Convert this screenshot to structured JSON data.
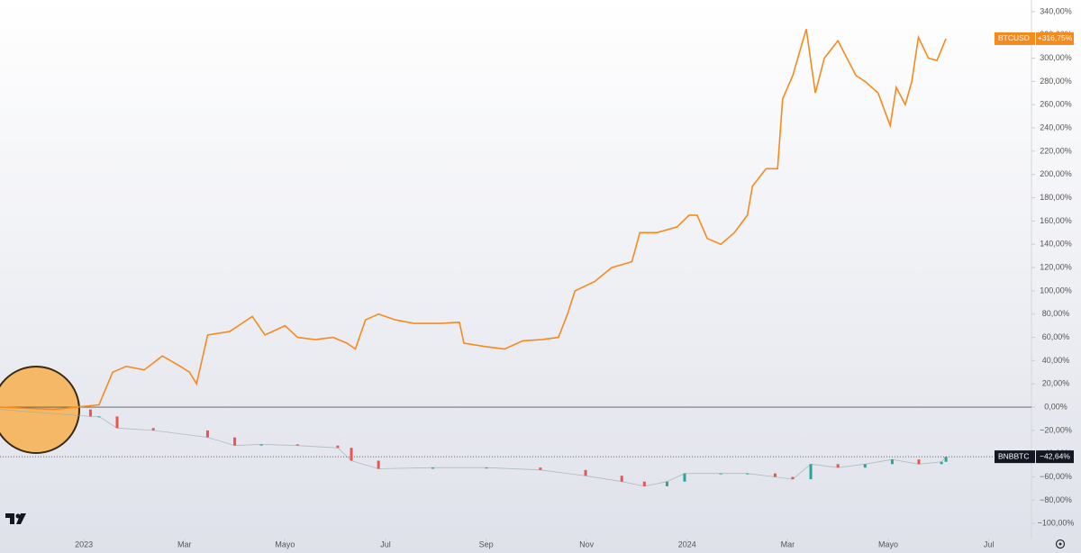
{
  "chart_data": {
    "type": "line",
    "xlim": [
      -1.67,
      18.85
    ],
    "xticks": [
      {
        "value": 0,
        "label": "2023"
      },
      {
        "value": 2,
        "label": "Mar"
      },
      {
        "value": 4,
        "label": "Mayo"
      },
      {
        "value": 6,
        "label": "Jul"
      },
      {
        "value": 8,
        "label": "Sep"
      },
      {
        "value": 10,
        "label": "Nov"
      },
      {
        "value": 12,
        "label": "2024"
      },
      {
        "value": 14,
        "label": "Mar"
      },
      {
        "value": 16,
        "label": "Mayo"
      },
      {
        "value": 18,
        "label": "Jul"
      }
    ],
    "ylim": [
      -113,
      350
    ],
    "yticks": [
      {
        "value": 340,
        "label": "340,00%"
      },
      {
        "value": 320,
        "label": "320,00%"
      },
      {
        "value": 300,
        "label": "300,00%"
      },
      {
        "value": 280,
        "label": "280,00%"
      },
      {
        "value": 260,
        "label": "260,00%"
      },
      {
        "value": 240,
        "label": "240,00%"
      },
      {
        "value": 220,
        "label": "220,00%"
      },
      {
        "value": 200,
        "label": "200,00%"
      },
      {
        "value": 180,
        "label": "180,00%"
      },
      {
        "value": 160,
        "label": "160,00%"
      },
      {
        "value": 140,
        "label": "140,00%"
      },
      {
        "value": 120,
        "label": "120,00%"
      },
      {
        "value": 100,
        "label": "100,00%"
      },
      {
        "value": 80,
        "label": "80,00%"
      },
      {
        "value": 60,
        "label": "60,00%"
      },
      {
        "value": 40,
        "label": "40,00%"
      },
      {
        "value": 20,
        "label": "20,00%"
      },
      {
        "value": 0,
        "label": "0,00%"
      },
      {
        "value": -20,
        "label": "−20,00%"
      },
      {
        "value": -40,
        "label": "−40,00%"
      },
      {
        "value": -60,
        "label": "−60,00%"
      },
      {
        "value": -80,
        "label": "−80,00%"
      },
      {
        "value": -100,
        "label": "−100,00%"
      }
    ],
    "series": [
      {
        "name": "BTCUSD",
        "style": "line",
        "color": "#f68a1e",
        "x": [
          -1.67,
          -0.6,
          0.3,
          0.57,
          0.84,
          1.2,
          1.56,
          1.92,
          2.1,
          2.24,
          2.46,
          2.9,
          3.35,
          3.6,
          4.0,
          4.25,
          4.6,
          4.96,
          5.23,
          5.4,
          5.6,
          5.86,
          6.2,
          6.57,
          7.1,
          7.47,
          7.56,
          8.0,
          8.37,
          8.73,
          9.1,
          9.44,
          9.62,
          9.77,
          10.16,
          10.5,
          10.9,
          11.06,
          11.4,
          11.8,
          12.04,
          12.2,
          12.4,
          12.67,
          12.94,
          13.2,
          13.3,
          13.57,
          13.8,
          13.9,
          14.1,
          14.37,
          14.55,
          14.73,
          15.0,
          15.18,
          15.36,
          15.54,
          15.8,
          16.04,
          16.16,
          16.34,
          16.47,
          16.6,
          16.8,
          16.97,
          17.15
        ],
        "values": [
          0,
          -2,
          2,
          30,
          35,
          32,
          44,
          35,
          30,
          20,
          62,
          65,
          78,
          62,
          70,
          60,
          58,
          60,
          55,
          50,
          75,
          80,
          75,
          72,
          72,
          73,
          55,
          52,
          50,
          57,
          58,
          60,
          80,
          100,
          108,
          120,
          125,
          150,
          150,
          155,
          165,
          165,
          145,
          140,
          150,
          165,
          190,
          205,
          205,
          265,
          285,
          325,
          270,
          300,
          315,
          300,
          285,
          280,
          270,
          242,
          275,
          260,
          280,
          318,
          300,
          298,
          316.75
        ],
        "value_labels": [
          null,
          null,
          null,
          null,
          null,
          null,
          null,
          null,
          null,
          null,
          null,
          null,
          null,
          null,
          null,
          null,
          null,
          null,
          null,
          null,
          null,
          null,
          null,
          null,
          null,
          null,
          null,
          null,
          null,
          null,
          null,
          null,
          null,
          null,
          null,
          null,
          null,
          null,
          null,
          null,
          null,
          null,
          null,
          null,
          null,
          null,
          null,
          null,
          null,
          null,
          null,
          null,
          null,
          null,
          null,
          null,
          null,
          null,
          null,
          null,
          null,
          null,
          null,
          null,
          null,
          null,
          "+316,75%"
        ]
      },
      {
        "name": "BNBBTC",
        "style": "candles",
        "color": "#000000",
        "up_color": "#26a69a",
        "down_color": "#ef5350",
        "x": [
          -1.67,
          0.13,
          0.3,
          0.66,
          1.38,
          2.46,
          3.0,
          3.53,
          4.25,
          5.05,
          5.32,
          5.86,
          6.94,
          8.01,
          9.08,
          9.98,
          10.7,
          11.15,
          11.6,
          11.95,
          12.67,
          13.2,
          13.75,
          14.1,
          14.46,
          15.0,
          15.54,
          16.08,
          16.61,
          17.06,
          17.15
        ],
        "values": [
          -2,
          -8,
          -8,
          -18,
          -20,
          -26,
          -33,
          -32,
          -33,
          -35,
          -46,
          -53,
          -52,
          -52,
          -54,
          -59,
          -64,
          -68,
          -64,
          -57,
          -57,
          -57,
          -60,
          -62,
          -49,
          -52,
          -49,
          -45,
          -49,
          -47,
          -42.64
        ],
        "value_labels": [
          null,
          null,
          null,
          null,
          null,
          null,
          null,
          null,
          null,
          null,
          null,
          null,
          null,
          null,
          null,
          null,
          null,
          null,
          null,
          null,
          null,
          null,
          null,
          null,
          null,
          null,
          null,
          null,
          null,
          null,
          "−42,64%"
        ]
      }
    ]
  }
}
